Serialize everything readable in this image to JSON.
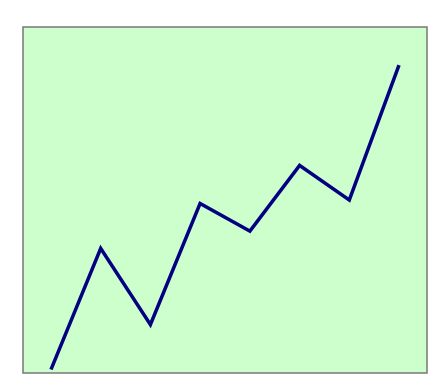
{
  "colors": {
    "page_background": "#ffffff",
    "plot_background": "#ccffcc",
    "plot_border": "#777777",
    "line": "#000080"
  },
  "chart_data": {
    "type": "line",
    "title": "",
    "xlabel": "",
    "ylabel": "",
    "grid": false,
    "legend": "none",
    "x": [
      0,
      1,
      2,
      3,
      4,
      5,
      6,
      7
    ],
    "xlim": [
      0,
      7
    ],
    "ylim": [
      0,
      10
    ],
    "series": [
      {
        "values": [
          0.1,
          3.6,
          1.4,
          4.9,
          4.1,
          6.0,
          5.0,
          8.9
        ]
      }
    ]
  }
}
